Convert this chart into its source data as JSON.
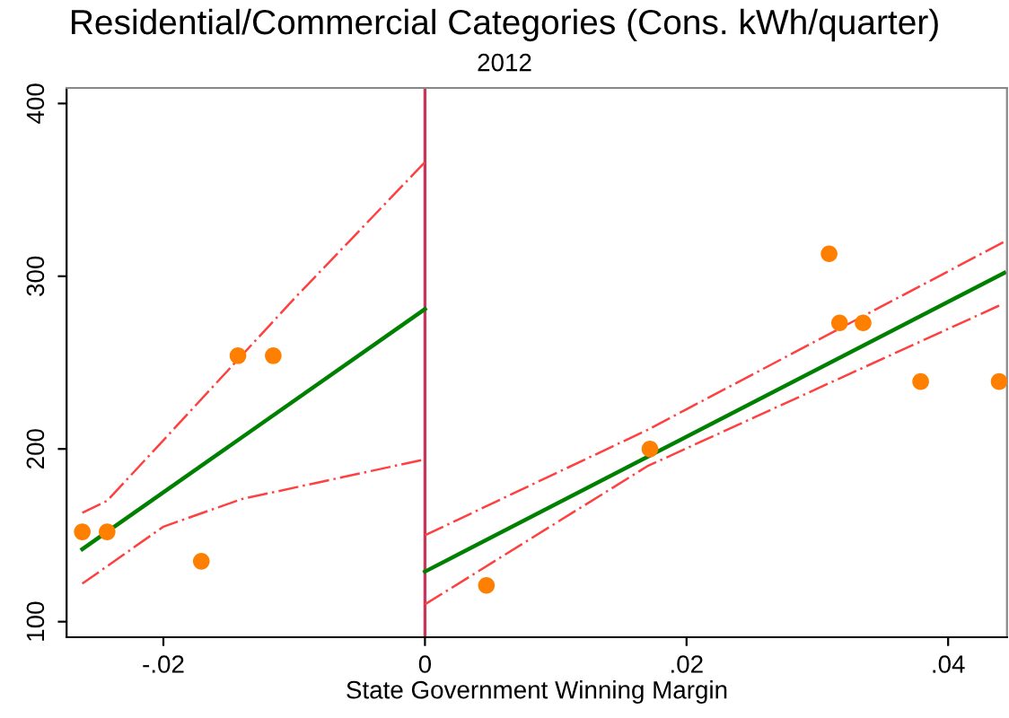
{
  "chart_data": {
    "type": "scatter",
    "title": "Residential/Commercial Categories (Cons. kWh/quarter)",
    "subtitle": "2012",
    "xlabel": "State Government Winning Margin",
    "xlim": [
      -0.0274,
      0.0445
    ],
    "ylim": [
      91,
      409
    ],
    "xticks": [
      {
        "value": -0.02,
        "label": "-.02"
      },
      0,
      {
        "value": 0.02,
        "label": ".02"
      },
      {
        "value": 0.04,
        "label": ".04"
      }
    ],
    "yticks": [
      100,
      200,
      300,
      400
    ],
    "grid": false,
    "legend": false,
    "ref_lines": [
      {
        "axis": "x",
        "value": 0,
        "color": "#c8375a",
        "line_style": "solid"
      }
    ],
    "series": [
      {
        "color": "#ff7f00",
        "marker": "circle",
        "x": [
          -0.0262,
          -0.0243,
          -0.0171,
          -0.0143,
          -0.0116,
          0.0047,
          0.0172,
          0.0309,
          0.0317,
          0.0335,
          0.0379,
          0.0439
        ],
        "values": [
          152,
          152,
          135,
          254,
          254,
          121,
          200,
          313,
          273,
          273,
          239,
          239
        ]
      },
      {
        "type": "line",
        "color": "#008000",
        "line_style": "solid",
        "x": [
          -0.0262,
          0
        ],
        "values": [
          142,
          281
        ]
      },
      {
        "type": "line",
        "color": "#008000",
        "line_style": "solid",
        "x": [
          0,
          0.0443
        ],
        "values": [
          129,
          302
        ]
      },
      {
        "type": "line",
        "color": "#ff4040",
        "line_style": "dashed",
        "x": [
          -0.0262,
          -0.0243,
          -0.02,
          -0.01,
          0
        ],
        "values": [
          163,
          170,
          205,
          287,
          366
        ]
      },
      {
        "type": "line",
        "color": "#ff4040",
        "line_style": "dashed",
        "x": [
          -0.0262,
          -0.02,
          -0.014,
          0
        ],
        "values": [
          122,
          155,
          171,
          194
        ]
      },
      {
        "type": "line",
        "color": "#ff4040",
        "line_style": "dashed",
        "x": [
          0,
          0.017,
          0.0443
        ],
        "values": [
          150,
          211,
          320
        ]
      },
      {
        "type": "line",
        "color": "#ff4040",
        "line_style": "dashed",
        "x": [
          0,
          0.017,
          0.0439
        ],
        "values": [
          110,
          190,
          283
        ]
      }
    ]
  }
}
